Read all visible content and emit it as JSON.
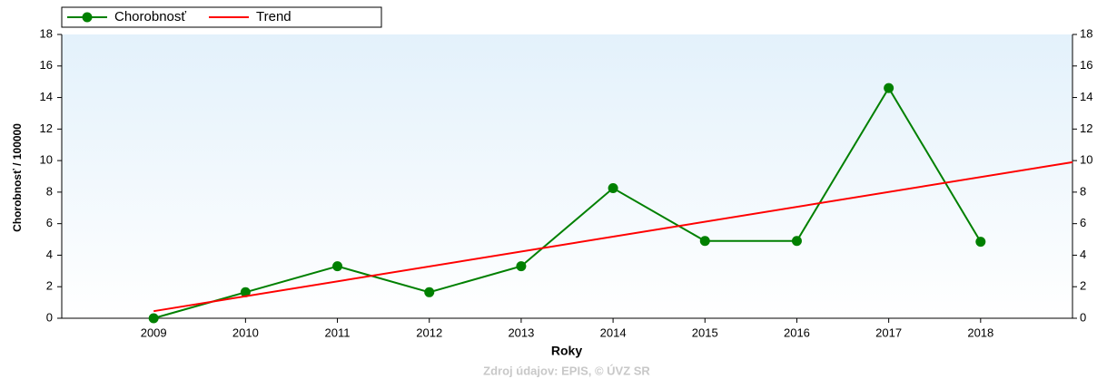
{
  "chart_data": {
    "type": "line",
    "x": [
      2009,
      2010,
      2011,
      2012,
      2013,
      2014,
      2015,
      2016,
      2017,
      2018
    ],
    "series": [
      {
        "name": "Chorobnosť",
        "color": "#008000",
        "marker": true,
        "values": [
          0,
          1.65,
          3.3,
          1.65,
          3.3,
          8.25,
          4.9,
          4.9,
          14.6,
          4.85
        ]
      },
      {
        "name": "Trend",
        "color": "#ff0000",
        "marker": false,
        "x": [
          2009,
          2019
        ],
        "values": [
          0.45,
          9.9
        ]
      }
    ],
    "xlabel": "Roky",
    "ylabel": "Chorobnosť / 100000",
    "source": "Zdroj údajov: EPIS, © ÚVZ SR",
    "xlim": [
      2008,
      2019
    ],
    "xticks": [
      2009,
      2010,
      2011,
      2012,
      2013,
      2014,
      2015,
      2016,
      2017,
      2018
    ],
    "ylim": [
      0,
      18
    ],
    "yticks": [
      0,
      2,
      4,
      6,
      8,
      10,
      12,
      14,
      16,
      18
    ],
    "y2lim": [
      0,
      18
    ],
    "y2ticks": [
      0,
      2,
      4,
      6,
      8,
      10,
      12,
      14,
      16,
      18
    ],
    "grid": false,
    "legend": "top-left"
  }
}
